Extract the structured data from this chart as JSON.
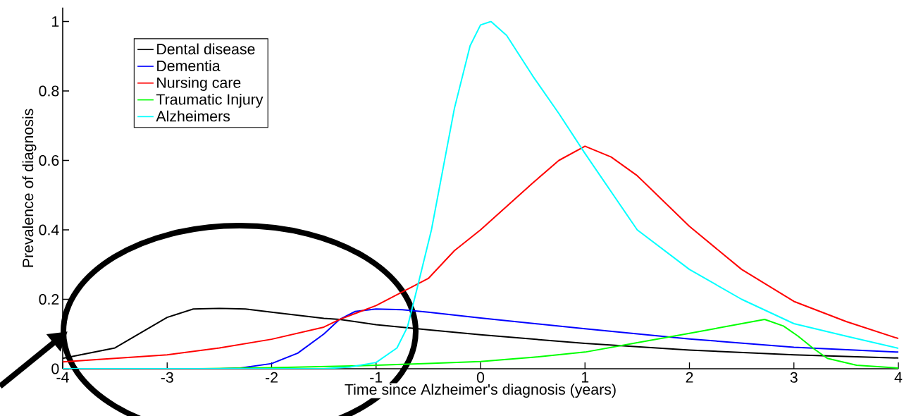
{
  "chart_data": {
    "type": "line",
    "xlabel": "Time since Alzheimer's diagnosis (years)",
    "ylabel": "Prevalence of diagnosis",
    "xlim": [
      -4,
      4
    ],
    "ylim": [
      0,
      1.04
    ],
    "xticks": [
      -4,
      -3,
      -2,
      -1,
      0,
      1,
      2,
      3,
      4
    ],
    "yticks": [
      0,
      0.2,
      0.4,
      0.6,
      0.8,
      1
    ],
    "legend": "top left",
    "marker": "none",
    "line_style": "solid",
    "series": [
      {
        "name": "Dental disease",
        "color": "#000000",
        "x": [
          -4,
          -3.5,
          -3,
          -2.75,
          -2.5,
          -2.25,
          -2,
          -1.5,
          -1.35,
          -1,
          -0.5,
          0,
          1,
          2,
          3,
          4
        ],
        "values": [
          0.03,
          0.06,
          0.148,
          0.172,
          0.174,
          0.172,
          0.163,
          0.145,
          0.142,
          0.127,
          0.112,
          0.098,
          0.073,
          0.054,
          0.04,
          0.031
        ]
      },
      {
        "name": "Dementia",
        "color": "#0000ff",
        "x": [
          -4,
          -2.5,
          -2.3,
          -2,
          -1.75,
          -1.5,
          -1.35,
          -1.2,
          -1,
          -0.75,
          -0.5,
          0,
          1,
          2,
          3,
          4
        ],
        "values": [
          0,
          0,
          0.002,
          0.015,
          0.045,
          0.1,
          0.142,
          0.165,
          0.172,
          0.17,
          0.163,
          0.146,
          0.115,
          0.086,
          0.062,
          0.048
        ]
      },
      {
        "name": "Nursing care",
        "color": "#ff0000",
        "x": [
          -4,
          -3.5,
          -3,
          -2.5,
          -2,
          -1.5,
          -1.35,
          -1,
          -0.5,
          -0.25,
          0,
          0.5,
          0.75,
          1,
          1.25,
          1.5,
          2,
          2.5,
          3,
          3.5,
          4
        ],
        "values": [
          0.02,
          0.03,
          0.04,
          0.06,
          0.085,
          0.12,
          0.142,
          0.182,
          0.26,
          0.34,
          0.4,
          0.535,
          0.6,
          0.641,
          0.61,
          0.556,
          0.41,
          0.286,
          0.194,
          0.136,
          0.087
        ]
      },
      {
        "name": "Traumatic Injury",
        "color": "#00ff00",
        "x": [
          -4,
          -2.7,
          -2,
          -1,
          -0.5,
          0,
          0.5,
          1,
          1.5,
          2,
          2.5,
          2.72,
          2.9,
          3.04,
          3.18,
          3.32,
          3.6,
          4
        ],
        "values": [
          0,
          0,
          0.003,
          0.01,
          0.015,
          0.021,
          0.033,
          0.048,
          0.075,
          0.102,
          0.13,
          0.142,
          0.123,
          0.094,
          0.06,
          0.03,
          0.01,
          0.002
        ]
      },
      {
        "name": "Alzheimers",
        "color": "#00ffff",
        "x": [
          -4,
          -1.5,
          -1.25,
          -1,
          -0.8,
          -0.7,
          -0.6,
          -0.47,
          -0.25,
          -0.1,
          0,
          0.1,
          0.25,
          0.5,
          0.75,
          1,
          1.5,
          2,
          2.5,
          3,
          3.5,
          4
        ],
        "values": [
          0,
          0,
          0.005,
          0.018,
          0.06,
          0.12,
          0.24,
          0.4,
          0.75,
          0.93,
          0.99,
          1.0,
          0.96,
          0.843,
          0.735,
          0.62,
          0.4,
          0.286,
          0.2,
          0.13,
          0.094,
          0.059
        ]
      }
    ]
  }
}
